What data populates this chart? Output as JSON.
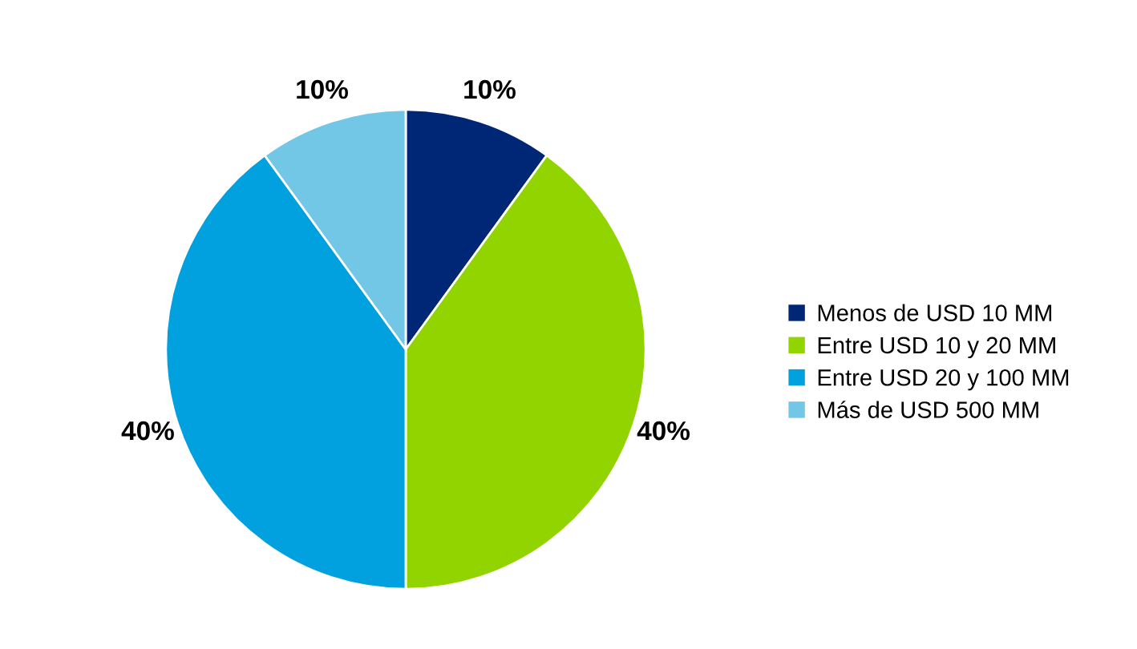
{
  "chart_data": {
    "type": "pie",
    "categories": [
      "Menos de USD 10 MM",
      "Entre USD 10 y 20 MM",
      "Entre USD 20 y 100 MM",
      "Más de USD 500 MM"
    ],
    "values": [
      10,
      40,
      40,
      10
    ],
    "colors": [
      "#002776",
      "#92d400",
      "#00a1de",
      "#72c7e7"
    ],
    "value_labels": [
      "10%",
      "40%",
      "40%",
      "10%"
    ],
    "legend": "right"
  }
}
